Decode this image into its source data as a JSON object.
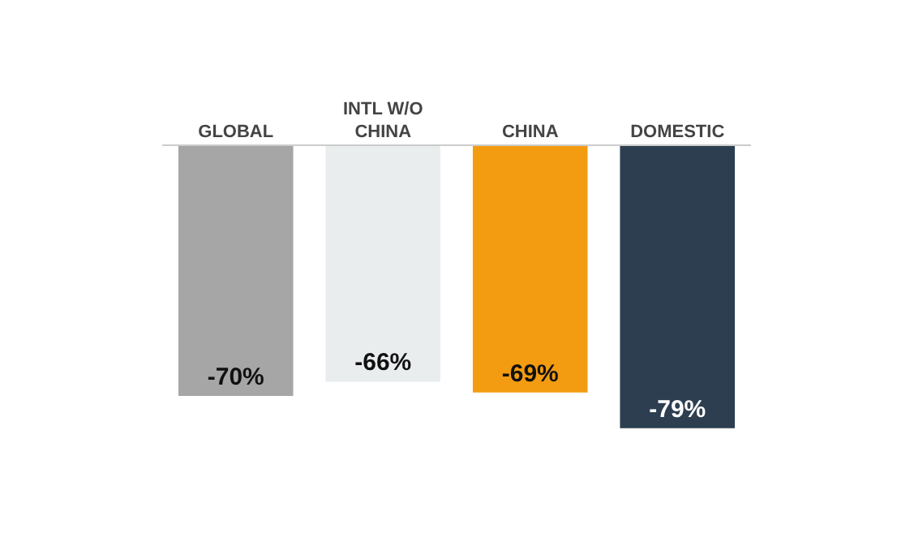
{
  "chart_data": {
    "type": "bar",
    "categories": [
      "GLOBAL",
      "INTL W/O\nCHINA",
      "CHINA",
      "DOMESTIC"
    ],
    "values": [
      -70,
      -66,
      -69,
      -79
    ],
    "colors": [
      "#a6a6a6",
      "#e9edee",
      "#f39c12",
      "#2c3e50"
    ],
    "value_labels": [
      "-70%",
      "-66%",
      "-69%",
      "-79%"
    ],
    "legend": false
  }
}
